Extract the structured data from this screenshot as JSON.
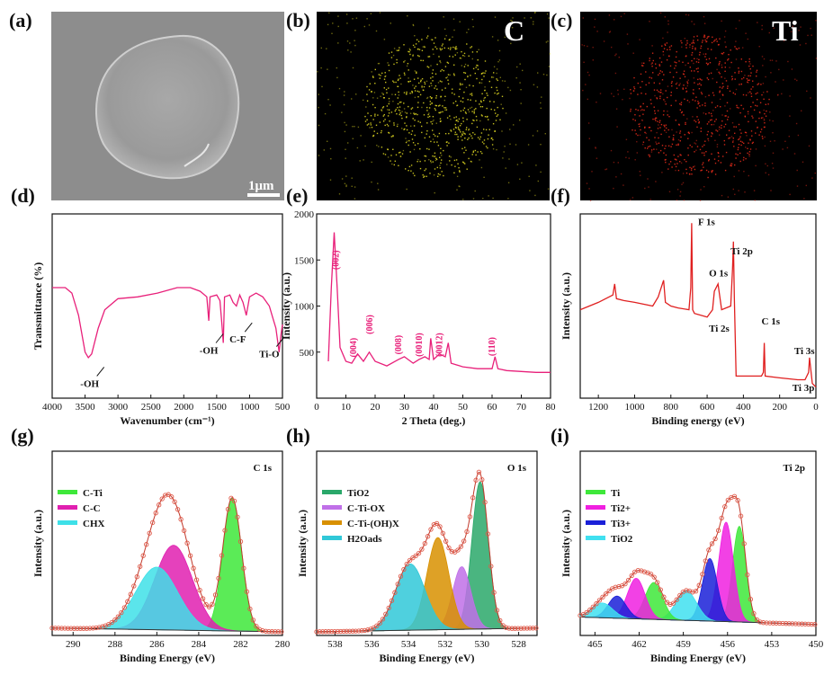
{
  "panels": {
    "a": {
      "label": "(a)",
      "scale_bar": "1μm"
    },
    "b": {
      "label": "(b)",
      "element": "C",
      "dot_color": "#d8d020"
    },
    "c": {
      "label": "(c)",
      "element": "Ti",
      "dot_color": "#e02a1a"
    },
    "d": {
      "label": "(d)"
    },
    "e": {
      "label": "(e)"
    },
    "f": {
      "label": "(f)"
    },
    "g": {
      "label": "(g)"
    },
    "h": {
      "label": "(h)"
    },
    "i": {
      "label": "(i)"
    }
  },
  "chart_data": [
    {
      "id": "d",
      "type": "line",
      "xlabel": "Wavenumber (cm⁻¹)",
      "ylabel": "Transmittance (%)",
      "xlim": [
        4000,
        500
      ],
      "ylim": [
        0,
        100
      ],
      "color": "#e8207a",
      "xticks": [
        4000,
        3500,
        3000,
        2500,
        2000,
        1500,
        1000,
        500
      ],
      "series": [
        {
          "x": [
            4000,
            3800,
            3700,
            3600,
            3500,
            3450,
            3400,
            3300,
            3200,
            3000,
            2700,
            2400,
            2100,
            1900,
            1750,
            1650,
            1620,
            1600,
            1500,
            1450,
            1420,
            1400,
            1380,
            1300,
            1250,
            1200,
            1150,
            1100,
            1050,
            1000,
            900,
            800,
            700,
            650,
            600,
            550,
            520,
            500
          ],
          "y": [
            60,
            60,
            57,
            45,
            25,
            22,
            24,
            38,
            48,
            54,
            55,
            57,
            60,
            60,
            58,
            55,
            42,
            55,
            56,
            53,
            40,
            30,
            55,
            56,
            52,
            50,
            56,
            52,
            45,
            55,
            57,
            55,
            50,
            44,
            38,
            25,
            35,
            40
          ]
        }
      ],
      "annotations": [
        {
          "text": "-OH",
          "x": 3430,
          "y": 12
        },
        {
          "text": "-OH",
          "x": 1620,
          "y": 30
        },
        {
          "text": "C-F",
          "x": 1180,
          "y": 36
        },
        {
          "text": "Ti-O",
          "x": 700,
          "y": 28
        }
      ]
    },
    {
      "id": "e",
      "type": "line",
      "xlabel": "2 Theta (deg.)",
      "ylabel": "Intensity (a.u.)",
      "xlim": [
        0,
        80
      ],
      "ylim": [
        0,
        2000
      ],
      "color": "#e8207a",
      "xticks": [
        0,
        10,
        20,
        30,
        40,
        50,
        60,
        70,
        80
      ],
      "yticks": [
        500,
        1000,
        1500,
        2000
      ],
      "series": [
        {
          "x": [
            4,
            5,
            6,
            7,
            8,
            10,
            12,
            14,
            16,
            18,
            20,
            24,
            28,
            30,
            33,
            35,
            37,
            38.5,
            39,
            40,
            42,
            44,
            45,
            46,
            50,
            55,
            60,
            61,
            62,
            65,
            70,
            75,
            80
          ],
          "y": [
            400,
            1200,
            1800,
            1200,
            550,
            400,
            380,
            480,
            400,
            500,
            400,
            350,
            420,
            450,
            380,
            420,
            450,
            420,
            650,
            420,
            480,
            450,
            600,
            380,
            340,
            320,
            320,
            450,
            320,
            300,
            290,
            280,
            280
          ]
        }
      ],
      "annotations": [
        {
          "text": "(002)",
          "x": 7.5,
          "y": 1500
        },
        {
          "text": "(004)",
          "x": 13.5,
          "y": 550
        },
        {
          "text": "(006)",
          "x": 19,
          "y": 800
        },
        {
          "text": "(008)",
          "x": 29,
          "y": 580
        },
        {
          "text": "(0010)",
          "x": 36,
          "y": 580
        },
        {
          "text": "(0012)",
          "x": 43,
          "y": 580
        },
        {
          "text": "(110)",
          "x": 61,
          "y": 560
        }
      ]
    },
    {
      "id": "f",
      "type": "line",
      "xlabel": "Binding energy (eV)",
      "ylabel": "Intensity (a.u.)",
      "xlim": [
        1300,
        0
      ],
      "ylim": [
        0,
        100
      ],
      "color": "#e02020",
      "xticks": [
        1200,
        1000,
        800,
        600,
        400,
        200,
        0
      ],
      "series": [
        {
          "x": [
            1300,
            1200,
            1120,
            1110,
            1100,
            1060,
            1000,
            900,
            870,
            860,
            840,
            830,
            800,
            760,
            700,
            690,
            685,
            680,
            670,
            600,
            570,
            560,
            540,
            530,
            520,
            470,
            460,
            455,
            450,
            440,
            400,
            300,
            290,
            285,
            280,
            200,
            100,
            60,
            40,
            35,
            20,
            0
          ],
          "y": [
            48,
            52,
            56,
            62,
            54,
            53,
            52,
            50,
            55,
            58,
            64,
            52,
            50,
            49,
            48,
            60,
            95,
            48,
            46,
            44,
            48,
            58,
            62,
            55,
            48,
            50,
            70,
            85,
            55,
            12,
            12,
            12,
            14,
            30,
            12,
            11,
            10,
            10,
            14,
            22,
            8,
            6
          ]
        }
      ],
      "annotations": [
        {
          "text": "F 1s",
          "x": 650,
          "y": 94
        },
        {
          "text": "O 1s",
          "x": 590,
          "y": 66
        },
        {
          "text": "Ti 2p",
          "x": 470,
          "y": 78
        },
        {
          "text": "Ti 2s",
          "x": 590,
          "y": 36
        },
        {
          "text": "C 1s",
          "x": 300,
          "y": 40
        },
        {
          "text": "Ti 3s",
          "x": 120,
          "y": 24
        },
        {
          "text": "Ti 3p",
          "x": 130,
          "y": 4
        }
      ]
    },
    {
      "id": "g",
      "type": "line",
      "title": "C 1s",
      "xlabel": "Binding Energy (eV)",
      "ylabel": "Intensity (a.u.)",
      "xlim": [
        291,
        280
      ],
      "ylim": [
        0,
        100
      ],
      "xticks": [
        290,
        288,
        286,
        284,
        282,
        280
      ],
      "legend": [
        {
          "name": "C-Ti",
          "color": "#3ee83a"
        },
        {
          "name": "C-C",
          "color": "#e020b0"
        },
        {
          "name": "CHX",
          "color": "#3ee0e8"
        }
      ],
      "components": [
        {
          "name": "C-Ti",
          "center": 282.4,
          "height": 72,
          "width": 0.45,
          "color": "#3ee83a"
        },
        {
          "name": "C-C",
          "center": 285.2,
          "height": 46,
          "width": 0.9,
          "color": "#e020b0"
        },
        {
          "name": "CHX",
          "center": 286.0,
          "height": 34,
          "width": 1.0,
          "color": "#3ee0e8"
        }
      ],
      "baseline": [
        4,
        2
      ]
    },
    {
      "id": "h",
      "type": "line",
      "title": "O 1s",
      "xlabel": "Binding Energy (eV)",
      "ylabel": "Intensity (a.u.)",
      "xlim": [
        539,
        527
      ],
      "ylim": [
        0,
        100
      ],
      "xticks": [
        538,
        536,
        534,
        532,
        530,
        528
      ],
      "legend": [
        {
          "name": "TiO2",
          "color": "#2aa86a"
        },
        {
          "name": "C-Ti-OX",
          "color": "#c070e8"
        },
        {
          "name": "C-Ti-(OH)X",
          "color": "#d89000"
        },
        {
          "name": "H2Oads",
          "color": "#30c8d8"
        }
      ],
      "components": [
        {
          "name": "TiO2",
          "center": 530.1,
          "height": 80,
          "width": 0.45,
          "color": "#2aa86a"
        },
        {
          "name": "C-Ti-OX",
          "center": 531.1,
          "height": 34,
          "width": 0.5,
          "color": "#c070e8"
        },
        {
          "name": "C-Ti-(OH)X",
          "center": 532.4,
          "height": 50,
          "width": 0.6,
          "color": "#d89000"
        },
        {
          "name": "H2Oads",
          "center": 533.9,
          "height": 36,
          "width": 0.8,
          "color": "#30c8d8"
        }
      ],
      "baseline": [
        2,
        4
      ]
    },
    {
      "id": "i",
      "type": "line",
      "title": "Ti 2p",
      "xlabel": "Binding Energy (eV)",
      "ylabel": "Intensity (a.u.)",
      "xlim": [
        466,
        450
      ],
      "ylim": [
        0,
        100
      ],
      "xticks": [
        465,
        462,
        459,
        456,
        453,
        450
      ],
      "legend": [
        {
          "name": "Ti",
          "color": "#3ee83a"
        },
        {
          "name": "Ti2+",
          "color": "#f020e0"
        },
        {
          "name": "Ti3+",
          "color": "#1a20d8"
        },
        {
          "name": "TiO2",
          "color": "#40e0f0"
        }
      ],
      "components": [
        {
          "name": "Ti",
          "center": 455.2,
          "height": 52,
          "width": 0.45,
          "color": "#3ee83a"
        },
        {
          "name": "Ti2+",
          "center": 456.1,
          "height": 54,
          "width": 0.5,
          "color": "#f020e0"
        },
        {
          "name": "Ti3+",
          "center": 457.2,
          "height": 34,
          "width": 0.5,
          "color": "#1a20d8"
        },
        {
          "name": "TiO2",
          "center": 458.8,
          "height": 16,
          "width": 0.7,
          "color": "#40e0f0"
        },
        {
          "name": "Ti",
          "center": 461.0,
          "height": 20,
          "width": 0.6,
          "color": "#3ee83a"
        },
        {
          "name": "Ti2+",
          "center": 462.2,
          "height": 22,
          "width": 0.6,
          "color": "#f020e0"
        },
        {
          "name": "Ti3+",
          "center": 463.5,
          "height": 12,
          "width": 0.6,
          "color": "#1a20d8"
        },
        {
          "name": "TiO2",
          "center": 464.5,
          "height": 8,
          "width": 0.7,
          "color": "#40e0f0"
        }
      ],
      "baseline": [
        10,
        6
      ]
    }
  ]
}
